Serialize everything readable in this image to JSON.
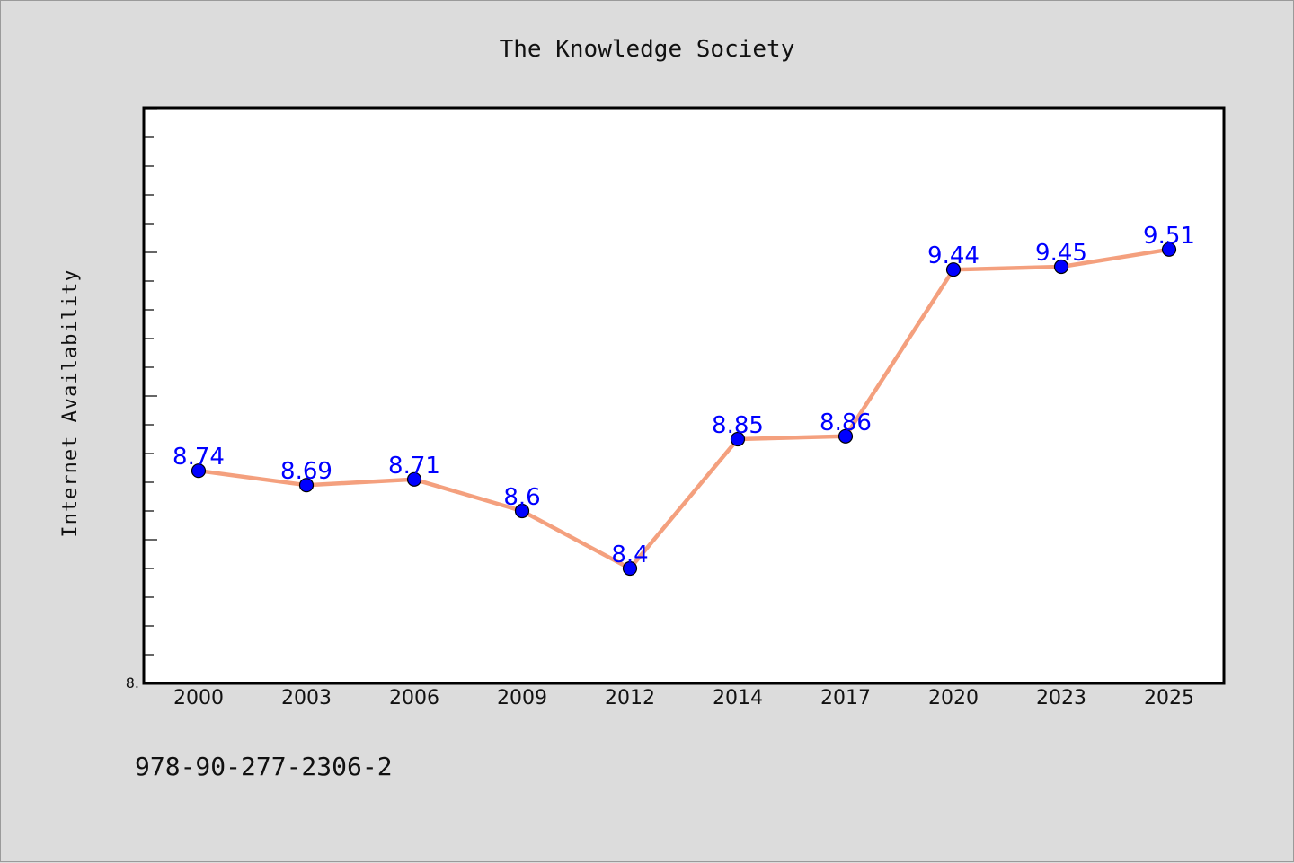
{
  "colors": {
    "background": "#dcdcdc",
    "plot_background": "#ffffff",
    "line": "#f4a07e",
    "marker": "#0000ff",
    "data_label": "#0000ff"
  },
  "chart_data": {
    "type": "line",
    "title": "The Knowledge Society",
    "xlabel": "",
    "ylabel": "Internet Availability",
    "categories": [
      "2000",
      "2003",
      "2006",
      "2009",
      "2012",
      "2014",
      "2017",
      "2020",
      "2023",
      "2025"
    ],
    "series": [
      {
        "values": [
          8.74,
          8.69,
          8.71,
          8.6,
          8.4,
          8.85,
          8.86,
          9.44,
          9.45,
          9.51
        ]
      }
    ],
    "data_labels": [
      "8.74",
      "8.69",
      "8.71",
      "8.6",
      "8.4",
      "8.85",
      "8.86",
      "9.44",
      "9.45",
      "9.51"
    ],
    "ylim": [
      8.0,
      10.0
    ],
    "ytick_labels": [
      {
        "value": 8.0,
        "label": "8."
      }
    ],
    "minor_tick_step": 0.1,
    "grid": false,
    "legend": "none",
    "marker": "circle"
  },
  "footer": {
    "isbn": "978-90-277-2306-2"
  }
}
